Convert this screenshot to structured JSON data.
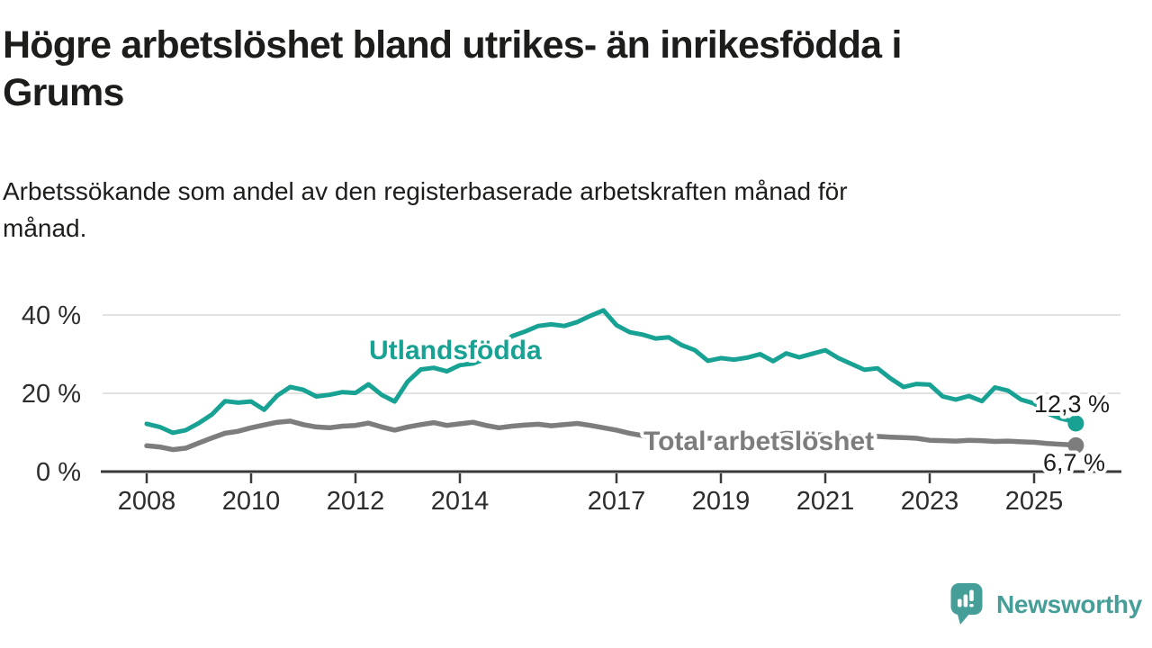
{
  "header": {
    "title": "Högre arbetslöshet bland utrikes- än inrikesfödda i Grums",
    "title_lines": [
      "Högre arbetslöshet bland utrikes- än inrikesfödda i",
      "Grums"
    ],
    "subtitle": "Arbetssökande som andel av den registerbaserade arbetskraften månad för månad.",
    "subtitle_lines": [
      "Arbetssökande som andel av den registerbaserade arbetskraften månad för",
      "månad."
    ]
  },
  "chart_data": {
    "type": "line",
    "title": "Högre arbetslöshet bland utrikes- än inrikesfödda i Grums",
    "subtitle": "Arbetssökande som andel av den registerbaserade arbetskraften månad för månad.",
    "y_unit": "percent",
    "ylim": [
      0,
      44
    ],
    "xlim": [
      2007.9,
      2026.7
    ],
    "grid": "horizontal",
    "y_ticks": [
      {
        "label": "0 %",
        "value": 0
      },
      {
        "label": "20 %",
        "value": 20
      },
      {
        "label": "40 %",
        "value": 40
      }
    ],
    "x_ticks": [
      {
        "label": "2008",
        "value": 2008
      },
      {
        "label": "2010",
        "value": 2010
      },
      {
        "label": "2012",
        "value": 2012
      },
      {
        "label": "2014",
        "value": 2014
      },
      {
        "label": "2017",
        "value": 2017
      },
      {
        "label": "2019",
        "value": 2019
      },
      {
        "label": "2021",
        "value": 2021
      },
      {
        "label": "2023",
        "value": 2023
      },
      {
        "label": "2025",
        "value": 2025
      }
    ],
    "x_start": 2008,
    "x_step": 0.25,
    "colors": {
      "grid": "#d9d9d9",
      "axis": "#3a3a3a",
      "tick_label": "#2d2d2d",
      "end_label": "#1d1d1b"
    },
    "series": [
      {
        "name": "Utlandsfödda",
        "color": "#17a294",
        "values": [
          12.2,
          11.4,
          9.9,
          10.6,
          12.4,
          14.6,
          18.0,
          17.6,
          17.9,
          15.8,
          19.4,
          21.6,
          20.9,
          19.2,
          19.6,
          20.3,
          20.1,
          22.3,
          19.6,
          17.9,
          23.0,
          26.1,
          26.5,
          25.6,
          27.2,
          27.6,
          28.8,
          32.0,
          34.6,
          35.8,
          37.2,
          37.6,
          37.2,
          38.2,
          39.8,
          41.2,
          37.4,
          35.6,
          35.0,
          34.0,
          34.3,
          32.3,
          31.0,
          28.3,
          29.0,
          28.6,
          29.1,
          30.0,
          28.2,
          30.2,
          29.2,
          30.1,
          31.0,
          29.0,
          27.5,
          26.0,
          26.4,
          23.8,
          21.6,
          22.4,
          22.2,
          19.2,
          18.4,
          19.3,
          18.0,
          21.5,
          20.7,
          18.4,
          17.4,
          14.9,
          13.6,
          12.8
        ],
        "end_point": {
          "x": 2025.8,
          "value": 12.3,
          "label": "12,3 %"
        }
      },
      {
        "name": "Total arbetslöshet",
        "color": "#7d7d7d",
        "values": [
          6.6,
          6.3,
          5.6,
          6.0,
          7.3,
          8.6,
          9.8,
          10.3,
          11.2,
          11.9,
          12.6,
          12.9,
          12.0,
          11.4,
          11.2,
          11.6,
          11.8,
          12.4,
          11.4,
          10.6,
          11.4,
          12.0,
          12.5,
          11.8,
          12.2,
          12.6,
          11.8,
          11.2,
          11.6,
          11.9,
          12.1,
          11.7,
          12.0,
          12.3,
          11.8,
          11.2,
          10.6,
          9.8,
          9.2,
          8.8,
          8.6,
          8.5,
          8.4,
          8.5,
          8.6,
          8.7,
          8.8,
          8.7,
          9.2,
          9.8,
          9.6,
          9.5,
          9.3,
          9.1,
          8.9,
          8.8,
          9.0,
          8.8,
          8.7,
          8.5,
          8.0,
          7.9,
          7.8,
          8.0,
          7.9,
          7.7,
          7.8,
          7.6,
          7.5,
          7.2,
          7.0,
          6.8
        ],
        "end_point": {
          "x": 2025.8,
          "value": 6.7,
          "label": "6,7 %"
        }
      }
    ]
  },
  "footer": {
    "brand": "Newsworthy",
    "brand_color": "#459e97",
    "logo_icon": "speech-bubble-bar-chart-icon"
  }
}
